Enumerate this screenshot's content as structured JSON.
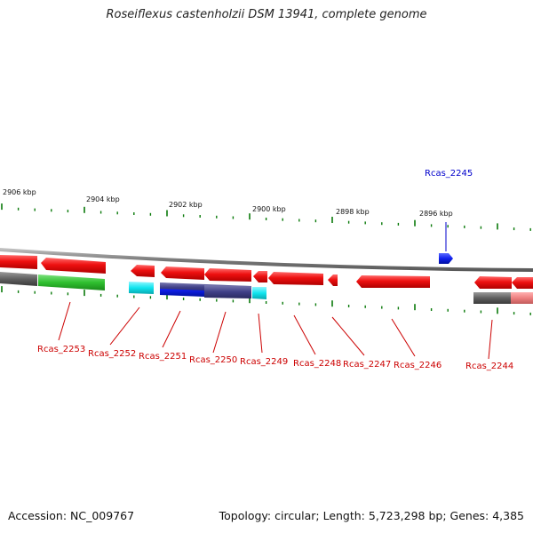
{
  "title": "Roseiflexus castenholzii DSM 13941, complete genome",
  "footer": {
    "accession": "Accession: NC_009767",
    "summary": "Topology: circular; Length: 5,723,298 bp; Genes: 4,385"
  },
  "colors": {
    "forward_gene": "#1020ee",
    "reverse_gene": "#ee1010",
    "cds_green": "#2fc02f",
    "cds_cyan": "#10e4ee",
    "cds_blue": "#1020dd",
    "cds_slate": "#404088",
    "cds_gray": "#606060",
    "cds_pink": "#ee8080",
    "tick": "#0a7a0a",
    "label_red": "#cc0000",
    "label_blue": "#0000cc"
  },
  "kbp_labels": [
    "2906 kbp",
    "2904 kbp",
    "2902 kbp",
    "2900 kbp",
    "2898 kbp",
    "2896 kbp"
  ],
  "genes": [
    {
      "name": "Rcas_2253",
      "color": "label_red"
    },
    {
      "name": "Rcas_2252",
      "color": "label_red"
    },
    {
      "name": "Rcas_2251",
      "color": "label_red"
    },
    {
      "name": "Rcas_2250",
      "color": "label_red"
    },
    {
      "name": "Rcas_2249",
      "color": "label_red"
    },
    {
      "name": "Rcas_2248",
      "color": "label_red"
    },
    {
      "name": "Rcas_2247",
      "color": "label_red"
    },
    {
      "name": "Rcas_2246",
      "color": "label_red"
    },
    {
      "name": "Rcas_2244",
      "color": "label_red"
    },
    {
      "name": "Rcas_2245",
      "color": "label_blue"
    }
  ]
}
